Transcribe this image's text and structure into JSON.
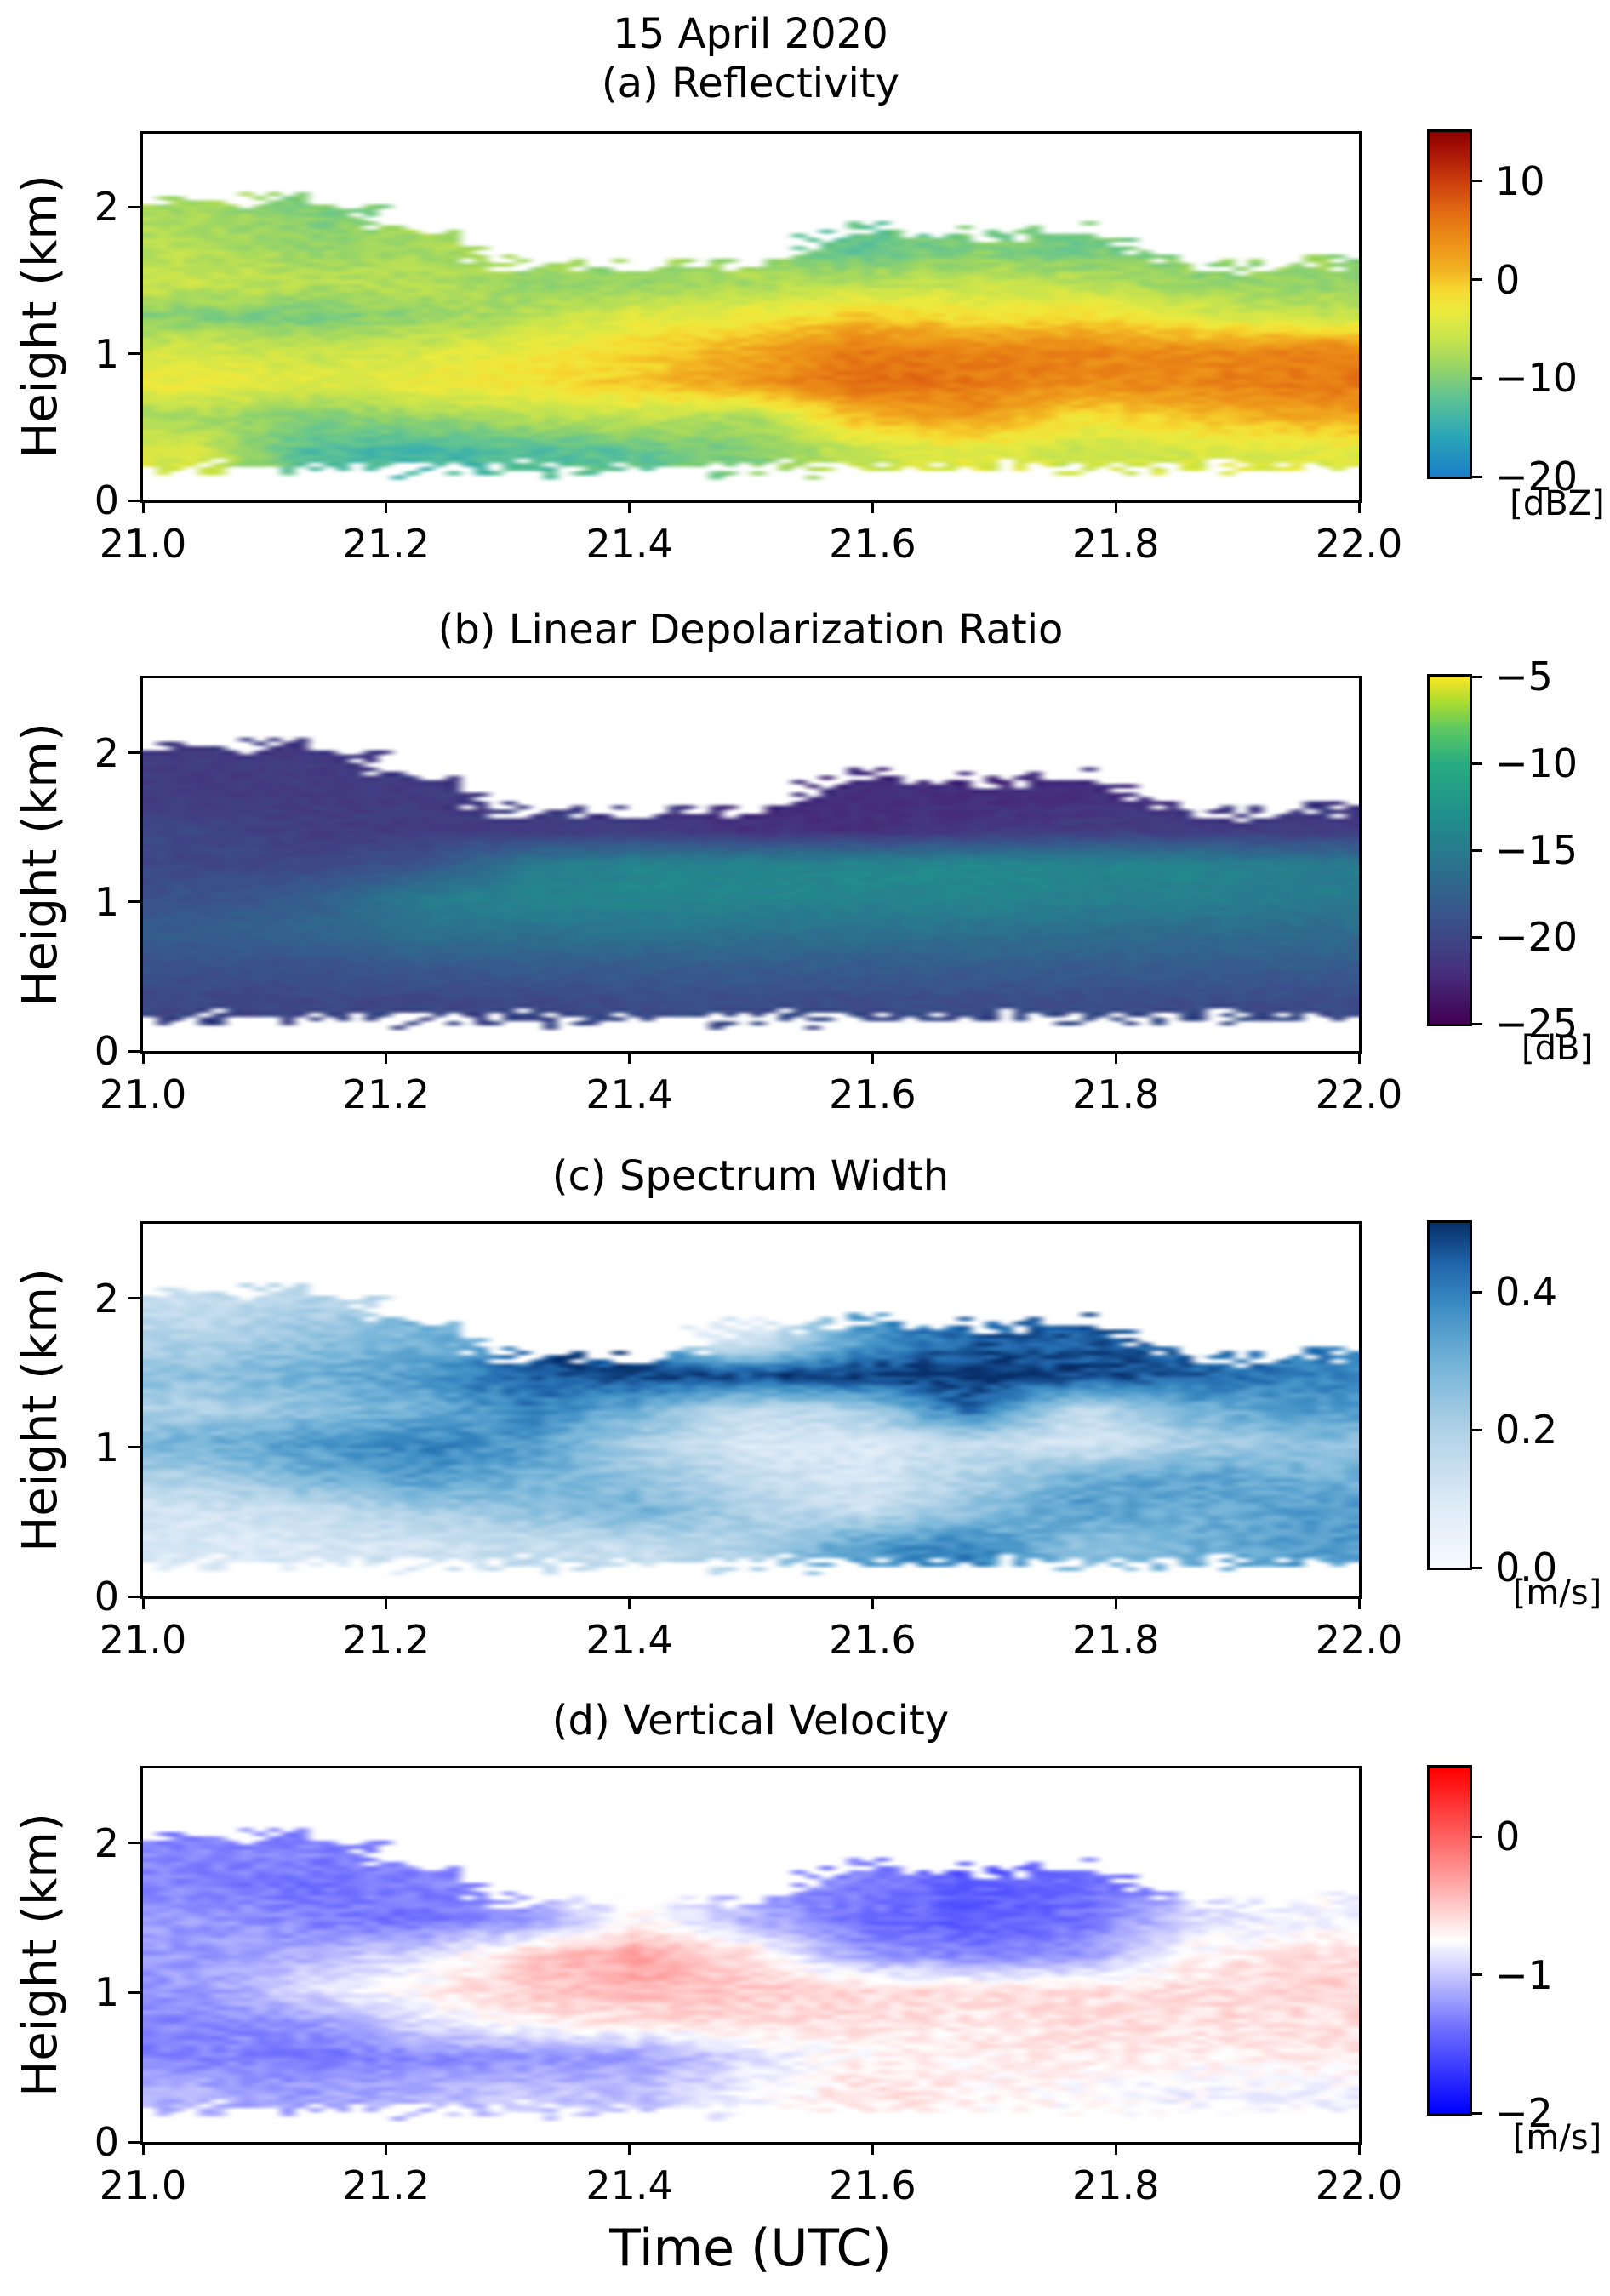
{
  "figure": {
    "suptitle": "15 April 2020",
    "xlabel": "Time (UTC)",
    "ylabel": "Height (km)",
    "x_tick_labels": [
      "21.0",
      "21.2",
      "21.4",
      "21.6",
      "21.8",
      "22.0"
    ],
    "x_tick_values": [
      21.0,
      21.2,
      21.4,
      21.6,
      21.8,
      22.0
    ],
    "y_tick_labels": [
      "0",
      "1",
      "2"
    ],
    "y_tick_values": [
      0,
      1,
      2
    ],
    "x_range_utc": [
      21.0,
      22.0
    ],
    "y_range_km": [
      0,
      2.5
    ],
    "background": "#ffffff"
  },
  "chart_data": [
    {
      "id": "a",
      "type": "heatmap",
      "title": "(a) Reflectivity",
      "unit": "[dBZ]",
      "colormap": "reflectivity",
      "vmin": -20,
      "vmax": 15,
      "colorbar_ticks": [
        {
          "value": 10,
          "label": "10"
        },
        {
          "value": 0,
          "label": "0"
        },
        {
          "value": -10,
          "label": "−10"
        },
        {
          "value": -20,
          "label": "−20"
        }
      ],
      "x": [
        21.0,
        21.1,
        21.2,
        21.3,
        21.4,
        21.5,
        21.6,
        21.7,
        21.8,
        21.9,
        22.0
      ],
      "y_km": [
        2.5,
        2.25,
        2.0,
        1.75,
        1.5,
        1.25,
        1.0,
        0.75,
        0.5,
        0.25,
        0.0
      ],
      "values": [
        [
          null,
          null,
          null,
          null,
          null,
          null,
          null,
          null,
          null,
          null,
          null
        ],
        [
          null,
          null,
          null,
          null,
          null,
          null,
          null,
          null,
          null,
          null,
          null
        ],
        [
          -8,
          -10,
          null,
          null,
          null,
          null,
          null,
          null,
          null,
          null,
          null
        ],
        [
          -7,
          -9,
          -8,
          null,
          null,
          null,
          -12,
          -10,
          -11,
          null,
          null
        ],
        [
          -6,
          -7,
          -7,
          -9,
          -9,
          -8,
          -7,
          -6,
          -7,
          -9,
          -9
        ],
        [
          -10,
          -11,
          -9,
          -7,
          -4,
          -3,
          0,
          -2,
          -1,
          -4,
          -6
        ],
        [
          -5,
          -6,
          -5,
          -3,
          -1,
          2,
          6,
          5,
          5,
          4,
          5
        ],
        [
          -3,
          -4,
          -3,
          -2,
          0,
          3,
          7,
          6,
          4,
          5,
          6
        ],
        [
          -8,
          -10,
          -9,
          -7,
          -6,
          -8,
          1,
          3,
          -2,
          0,
          2
        ],
        [
          -5,
          -13,
          -14,
          -13,
          -12,
          -10,
          -6,
          -4,
          -6,
          -5,
          -4
        ],
        [
          null,
          null,
          null,
          null,
          null,
          null,
          null,
          null,
          null,
          null,
          null
        ]
      ]
    },
    {
      "id": "b",
      "type": "heatmap",
      "title": "(b) Linear Depolarization Ratio",
      "unit": "[dB]",
      "colormap": "viridis",
      "vmin": -25,
      "vmax": -5,
      "colorbar_ticks": [
        {
          "value": -5,
          "label": "−5"
        },
        {
          "value": -10,
          "label": "−10"
        },
        {
          "value": -15,
          "label": "−15"
        },
        {
          "value": -20,
          "label": "−20"
        },
        {
          "value": -25,
          "label": "−25"
        }
      ],
      "x": [
        21.0,
        21.1,
        21.2,
        21.3,
        21.4,
        21.5,
        21.6,
        21.7,
        21.8,
        21.9,
        22.0
      ],
      "y_km": [
        2.5,
        2.25,
        2.0,
        1.75,
        1.5,
        1.25,
        1.0,
        0.75,
        0.5,
        0.25,
        0.0
      ],
      "values": [
        [
          null,
          null,
          null,
          null,
          null,
          null,
          null,
          null,
          null,
          null,
          null
        ],
        [
          null,
          null,
          null,
          null,
          null,
          null,
          null,
          null,
          null,
          null,
          null
        ],
        [
          -21,
          -21,
          null,
          null,
          null,
          null,
          null,
          null,
          null,
          null,
          null
        ],
        [
          -21,
          -21,
          -21,
          null,
          null,
          null,
          -22,
          -22,
          -22,
          null,
          null
        ],
        [
          -20,
          -21,
          -21,
          -21,
          -21,
          -22,
          -22,
          -21.5,
          -21,
          -21,
          -21
        ],
        [
          -20,
          -20,
          -19,
          -15,
          -14,
          -14,
          -14,
          -13.5,
          -14,
          -14,
          -15
        ],
        [
          -19,
          -18,
          -15,
          -14,
          -14,
          -14,
          -14,
          -14,
          -14.5,
          -14.5,
          -15
        ],
        [
          -18,
          -17,
          -16,
          -16,
          -15.5,
          -16,
          -16,
          -16,
          -16.5,
          -16.5,
          -16.5
        ],
        [
          -19,
          -19,
          -18.5,
          -18,
          -18,
          -18,
          -18,
          -18,
          -18,
          -18,
          -18
        ],
        [
          -20,
          -20,
          -20,
          -20,
          -19.5,
          -19.5,
          -19.5,
          -19.5,
          -19.5,
          -19.5,
          -19.5
        ],
        [
          null,
          null,
          null,
          null,
          null,
          null,
          null,
          null,
          null,
          null,
          null
        ]
      ]
    },
    {
      "id": "c",
      "type": "heatmap",
      "title": "(c) Spectrum Width",
      "unit": "[m/s]",
      "colormap": "blues",
      "vmin": 0,
      "vmax": 0.5,
      "colorbar_ticks": [
        {
          "value": 0.4,
          "label": "0.4"
        },
        {
          "value": 0.2,
          "label": "0.2"
        },
        {
          "value": 0.0,
          "label": "0.0"
        }
      ],
      "x": [
        21.0,
        21.1,
        21.2,
        21.3,
        21.4,
        21.5,
        21.6,
        21.7,
        21.8,
        21.9,
        22.0
      ],
      "y_km": [
        2.5,
        2.25,
        2.0,
        1.75,
        1.5,
        1.25,
        1.0,
        0.75,
        0.5,
        0.25,
        0.0
      ],
      "values": [
        [
          null,
          null,
          null,
          null,
          null,
          null,
          null,
          null,
          null,
          null,
          null
        ],
        [
          null,
          null,
          null,
          null,
          null,
          null,
          null,
          null,
          null,
          null,
          null
        ],
        [
          0.15,
          0.2,
          null,
          null,
          null,
          null,
          null,
          null,
          null,
          null,
          null
        ],
        [
          0.2,
          0.25,
          0.3,
          null,
          null,
          0.1,
          0.35,
          0.45,
          0.45,
          null,
          null
        ],
        [
          0.25,
          0.3,
          0.35,
          0.45,
          0.48,
          0.48,
          0.5,
          0.5,
          0.48,
          0.45,
          0.4
        ],
        [
          0.2,
          0.25,
          0.3,
          0.4,
          0.3,
          0.15,
          0.2,
          0.45,
          0.15,
          0.3,
          0.35
        ],
        [
          0.3,
          0.35,
          0.4,
          0.35,
          0.2,
          0.1,
          0.1,
          0.15,
          0.1,
          0.2,
          0.25
        ],
        [
          0.2,
          0.3,
          0.35,
          0.3,
          0.25,
          0.15,
          0.1,
          0.2,
          0.3,
          0.35,
          0.3
        ],
        [
          0.12,
          0.15,
          0.2,
          0.25,
          0.3,
          0.2,
          0.15,
          0.25,
          0.35,
          0.3,
          0.35
        ],
        [
          0.1,
          0.1,
          0.12,
          0.15,
          0.15,
          0.2,
          0.35,
          0.4,
          0.25,
          0.3,
          0.35
        ],
        [
          null,
          null,
          null,
          null,
          null,
          null,
          null,
          null,
          null,
          null,
          null
        ]
      ]
    },
    {
      "id": "d",
      "type": "heatmap",
      "title": "(d) Vertical Velocity",
      "unit": "[m/s]",
      "colormap": "bwr",
      "vmin": -2,
      "vmax": 0.5,
      "colorbar_ticks": [
        {
          "value": 0,
          "label": "0"
        },
        {
          "value": -1,
          "label": "−1"
        },
        {
          "value": -2,
          "label": "−2"
        }
      ],
      "x": [
        21.0,
        21.1,
        21.2,
        21.3,
        21.4,
        21.5,
        21.6,
        21.7,
        21.8,
        21.9,
        22.0
      ],
      "y_km": [
        2.5,
        2.25,
        2.0,
        1.75,
        1.5,
        1.25,
        1.0,
        0.75,
        0.5,
        0.25,
        0.0
      ],
      "values": [
        [
          null,
          null,
          null,
          null,
          null,
          null,
          null,
          null,
          null,
          null,
          null
        ],
        [
          null,
          null,
          null,
          null,
          null,
          null,
          null,
          null,
          null,
          null,
          null
        ],
        [
          -1.3,
          -1.3,
          null,
          null,
          null,
          null,
          null,
          null,
          null,
          null,
          null
        ],
        [
          -1.3,
          -1.4,
          -1.3,
          null,
          null,
          null,
          -1.3,
          -1.5,
          -1.4,
          null,
          null
        ],
        [
          -1.2,
          -1.3,
          -1.4,
          -1.2,
          -0.7,
          -1.1,
          -1.4,
          -1.5,
          -1.4,
          -0.9,
          -0.8
        ],
        [
          -1.2,
          -1.1,
          -0.9,
          -0.5,
          -0.3,
          -0.6,
          -1.2,
          -1.3,
          -1.2,
          -0.7,
          -0.6
        ],
        [
          -1.2,
          -0.9,
          -0.7,
          -0.5,
          -0.4,
          -0.5,
          -0.55,
          -0.6,
          -0.6,
          -0.6,
          -0.55
        ],
        [
          -1.3,
          -1.2,
          -0.9,
          -0.7,
          -0.6,
          -0.6,
          -0.6,
          -0.65,
          -0.6,
          -0.6,
          -0.6
        ],
        [
          -1.3,
          -1.35,
          -1.3,
          -1.25,
          -1.2,
          -0.9,
          -0.7,
          -0.7,
          -0.65,
          -0.7,
          -0.65
        ],
        [
          -1.1,
          -1.2,
          -1.1,
          -1.0,
          -1.05,
          -0.8,
          -0.6,
          -0.7,
          -0.75,
          -0.8,
          -0.8
        ],
        [
          null,
          null,
          null,
          null,
          null,
          null,
          null,
          null,
          null,
          null,
          null
        ]
      ]
    }
  ],
  "colormaps": {
    "reflectivity": [
      [
        -20,
        "#1c7fc8"
      ],
      [
        -16,
        "#2aa6b8"
      ],
      [
        -12,
        "#5fc394"
      ],
      [
        -9,
        "#96d468"
      ],
      [
        -6,
        "#c8e44e"
      ],
      [
        -3,
        "#eeea3d"
      ],
      [
        -1,
        "#f7d930"
      ],
      [
        1,
        "#f2b322"
      ],
      [
        4,
        "#ec8f18"
      ],
      [
        7,
        "#e26b12"
      ],
      [
        10,
        "#cd3e0d"
      ],
      [
        13,
        "#aa1507"
      ],
      [
        15,
        "#8e0000"
      ]
    ],
    "viridis": [
      [
        -25,
        "#440154"
      ],
      [
        -22,
        "#46307e"
      ],
      [
        -19,
        "#3a538b"
      ],
      [
        -16,
        "#2c718e"
      ],
      [
        -13,
        "#21908d"
      ],
      [
        -10,
        "#27ad81"
      ],
      [
        -8,
        "#5ec962"
      ],
      [
        -6.5,
        "#aadc32"
      ],
      [
        -5,
        "#fde725"
      ]
    ],
    "blues": [
      [
        0,
        "#f7fbff"
      ],
      [
        0.1,
        "#dbe9f6"
      ],
      [
        0.2,
        "#b0d2e7"
      ],
      [
        0.3,
        "#73b3d8"
      ],
      [
        0.38,
        "#3d8dc4"
      ],
      [
        0.44,
        "#2167ac"
      ],
      [
        0.5,
        "#08306b"
      ]
    ],
    "bwr": [
      [
        -2,
        "#0000ff"
      ],
      [
        -1.4,
        "#6e6eff"
      ],
      [
        -0.75,
        "#ffffff"
      ],
      [
        -0.2,
        "#ff8a8a"
      ],
      [
        0.5,
        "#ff0000"
      ]
    ]
  }
}
